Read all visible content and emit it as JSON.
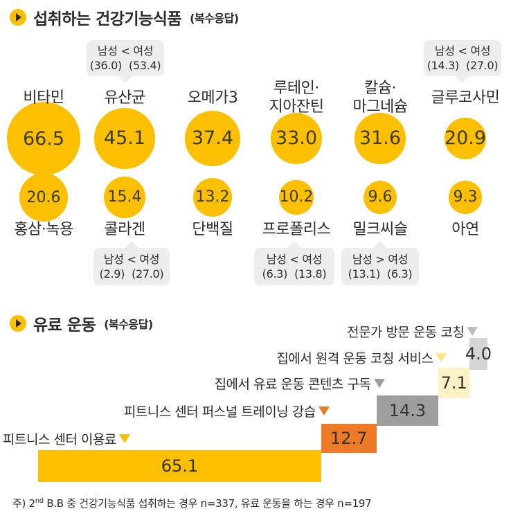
{
  "supplements": {
    "title": "섭취하는 건강기능식품",
    "subtitle": "(복수응답)",
    "chart_data": {
      "type": "bubble",
      "unit": "%",
      "items": [
        {
          "label": "비타민",
          "value": 66.5
        },
        {
          "label": "유산균",
          "value": 45.1
        },
        {
          "label": "오메가3",
          "value": 37.4
        },
        {
          "label": "루테인·지아잔틴",
          "value": 33.0
        },
        {
          "label": "칼슘·마그네슘",
          "value": 31.6
        },
        {
          "label": "글루코사민",
          "value": 20.9
        },
        {
          "label": "홍삼·녹용",
          "value": 20.6
        },
        {
          "label": "콜라겐",
          "value": 15.4
        },
        {
          "label": "단백질",
          "value": 13.2
        },
        {
          "label": "프로폴리스",
          "value": 10.2
        },
        {
          "label": "밀크씨슬",
          "value": 9.6
        },
        {
          "label": "아연",
          "value": 9.3
        }
      ]
    },
    "callouts": [
      {
        "item": "유산균",
        "text": "남성 < 여성",
        "male": "(36.0)",
        "female": "(53.4)"
      },
      {
        "item": "글루코사민",
        "text": "남성 < 여성",
        "male": "(14.3)",
        "female": "(27.0)"
      },
      {
        "item": "콜라겐",
        "text": "남성 < 여성",
        "male": "(2.9)",
        "female": "(27.0)"
      },
      {
        "item": "프로폴리스",
        "text": "남성 < 여성",
        "male": "(6.3)",
        "female": "(13.8)"
      },
      {
        "item": "밀크씨슬",
        "text": "남성 > 여성",
        "male": "(13.1)",
        "female": "(6.3)"
      }
    ]
  },
  "exercise": {
    "title": "유료 운동",
    "subtitle": "(복수응답)",
    "chart_data": {
      "type": "bar",
      "unit": "%",
      "items": [
        {
          "label": "피트니스 센터 이용료",
          "value": 65.1,
          "color": "#FCC000"
        },
        {
          "label": "피트니스 센터 퍼스널 트레이닝 강습",
          "value": 12.7,
          "color": "#EE7A27"
        },
        {
          "label": "집에서 유료 운동 콘텐츠 구독",
          "value": 14.3,
          "color": "#9E9E9E"
        },
        {
          "label": "집에서 원격 운동 코칭 서비스",
          "value": 7.1,
          "color": "#FFF2C4"
        },
        {
          "label": "전문가 방문 운동 코칭",
          "value": 4.0,
          "color": "#D5D5D5"
        }
      ]
    }
  },
  "footnote": {
    "prefix": "주) 2",
    "superscript": "nd",
    "text": " B.B 중 건강기능식품 섭취하는 경우 n=337, 유료 운동을 하는 경우 n=197"
  }
}
